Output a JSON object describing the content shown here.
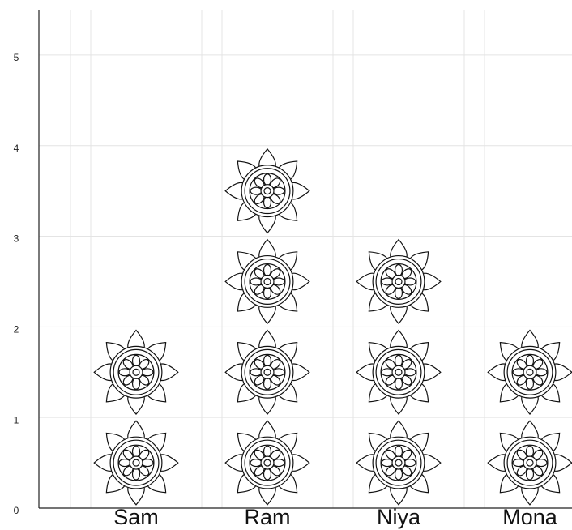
{
  "chart_data": {
    "type": "pictograph",
    "categories": [
      "Sam",
      "Ram",
      "Niya",
      "Mona"
    ],
    "values": [
      2,
      4,
      3,
      2
    ],
    "ylim": [
      0,
      5.5
    ],
    "yticks": [
      0,
      1,
      2,
      3,
      4,
      5
    ],
    "grid": true
  }
}
